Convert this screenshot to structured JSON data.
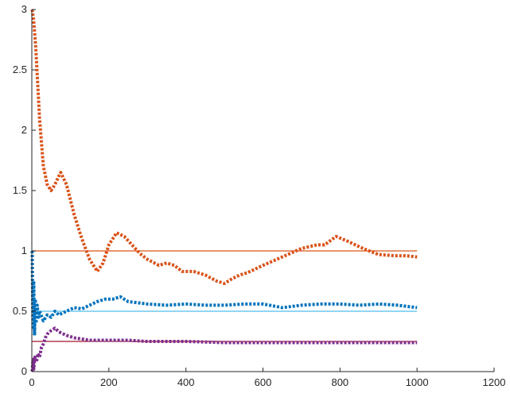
{
  "chart_data": {
    "type": "line",
    "title": "",
    "xlabel": "",
    "ylabel": "",
    "xlim": [
      0,
      1200
    ],
    "ylim": [
      0,
      3
    ],
    "grid": false,
    "legend": "none",
    "x_ticks": [
      {
        "value": 0,
        "label": "0"
      },
      {
        "value": 200,
        "label": "200"
      },
      {
        "value": 400,
        "label": "400"
      },
      {
        "value": 600,
        "label": "600"
      },
      {
        "value": 800,
        "label": "800"
      },
      {
        "value": 1000,
        "label": "1000"
      },
      {
        "value": 1200,
        "label": "1200"
      }
    ],
    "y_ticks": [
      {
        "value": 0,
        "label": "0"
      },
      {
        "value": 0.5,
        "label": "0.5"
      },
      {
        "value": 1,
        "label": "1"
      },
      {
        "value": 1.5,
        "label": "1.5"
      },
      {
        "value": 2,
        "label": "2"
      },
      {
        "value": 2.5,
        "label": "2.5"
      },
      {
        "value": 3,
        "label": "3"
      }
    ],
    "reference_lines": [
      {
        "y": 1.0,
        "x": [
          0,
          1000
        ],
        "color": "#D95319"
      },
      {
        "y": 0.5,
        "x": [
          0,
          1000
        ],
        "color": "#4DBEEE"
      },
      {
        "y": 0.25,
        "x": [
          0,
          1000
        ],
        "color": "#A2142F"
      }
    ],
    "series": [
      {
        "color": "#D95319",
        "style": "dotted",
        "points": [
          [
            1,
            3.0
          ],
          [
            5,
            2.9
          ],
          [
            10,
            2.7
          ],
          [
            15,
            2.4
          ],
          [
            20,
            2.1
          ],
          [
            30,
            1.7
          ],
          [
            40,
            1.55
          ],
          [
            50,
            1.5
          ],
          [
            60,
            1.55
          ],
          [
            70,
            1.62
          ],
          [
            75,
            1.65
          ],
          [
            90,
            1.55
          ],
          [
            110,
            1.3
          ],
          [
            130,
            1.1
          ],
          [
            150,
            0.93
          ],
          [
            170,
            0.83
          ],
          [
            185,
            0.9
          ],
          [
            200,
            1.05
          ],
          [
            220,
            1.15
          ],
          [
            240,
            1.12
          ],
          [
            260,
            1.05
          ],
          [
            280,
            0.98
          ],
          [
            300,
            0.93
          ],
          [
            330,
            0.88
          ],
          [
            350,
            0.9
          ],
          [
            370,
            0.88
          ],
          [
            390,
            0.83
          ],
          [
            420,
            0.83
          ],
          [
            450,
            0.8
          ],
          [
            480,
            0.75
          ],
          [
            500,
            0.73
          ],
          [
            520,
            0.77
          ],
          [
            540,
            0.8
          ],
          [
            560,
            0.82
          ],
          [
            600,
            0.88
          ],
          [
            650,
            0.95
          ],
          [
            700,
            1.02
          ],
          [
            740,
            1.05
          ],
          [
            760,
            1.05
          ],
          [
            790,
            1.12
          ],
          [
            820,
            1.08
          ],
          [
            860,
            1.02
          ],
          [
            900,
            0.97
          ],
          [
            940,
            0.96
          ],
          [
            970,
            0.96
          ],
          [
            1000,
            0.95
          ]
        ]
      },
      {
        "color": "#0072BD",
        "style": "dotted",
        "points": [
          [
            1,
            1.0
          ],
          [
            3,
            0.35
          ],
          [
            5,
            0.75
          ],
          [
            7,
            0.3
          ],
          [
            9,
            0.6
          ],
          [
            11,
            0.4
          ],
          [
            14,
            0.55
          ],
          [
            17,
            0.45
          ],
          [
            20,
            0.5
          ],
          [
            30,
            0.42
          ],
          [
            40,
            0.47
          ],
          [
            50,
            0.45
          ],
          [
            60,
            0.5
          ],
          [
            70,
            0.47
          ],
          [
            90,
            0.5
          ],
          [
            110,
            0.53
          ],
          [
            130,
            0.52
          ],
          [
            150,
            0.55
          ],
          [
            170,
            0.58
          ],
          [
            190,
            0.6
          ],
          [
            210,
            0.6
          ],
          [
            230,
            0.62
          ],
          [
            250,
            0.58
          ],
          [
            300,
            0.56
          ],
          [
            350,
            0.55
          ],
          [
            400,
            0.56
          ],
          [
            450,
            0.55
          ],
          [
            500,
            0.55
          ],
          [
            550,
            0.56
          ],
          [
            600,
            0.56
          ],
          [
            650,
            0.53
          ],
          [
            700,
            0.55
          ],
          [
            750,
            0.56
          ],
          [
            800,
            0.56
          ],
          [
            850,
            0.55
          ],
          [
            900,
            0.56
          ],
          [
            950,
            0.55
          ],
          [
            1000,
            0.53
          ]
        ]
      },
      {
        "color": "#7E2F8E",
        "style": "dotted",
        "points": [
          [
            1,
            0.0
          ],
          [
            3,
            0.1
          ],
          [
            5,
            0.02
          ],
          [
            8,
            0.12
          ],
          [
            12,
            0.08
          ],
          [
            16,
            0.15
          ],
          [
            20,
            0.12
          ],
          [
            25,
            0.2
          ],
          [
            30,
            0.23
          ],
          [
            35,
            0.28
          ],
          [
            40,
            0.31
          ],
          [
            50,
            0.34
          ],
          [
            60,
            0.36
          ],
          [
            70,
            0.33
          ],
          [
            90,
            0.3
          ],
          [
            110,
            0.28
          ],
          [
            130,
            0.27
          ],
          [
            150,
            0.26
          ],
          [
            200,
            0.26
          ],
          [
            250,
            0.26
          ],
          [
            300,
            0.25
          ],
          [
            400,
            0.25
          ],
          [
            500,
            0.24
          ],
          [
            600,
            0.24
          ],
          [
            700,
            0.24
          ],
          [
            800,
            0.24
          ],
          [
            900,
            0.24
          ],
          [
            1000,
            0.24
          ]
        ]
      }
    ]
  }
}
